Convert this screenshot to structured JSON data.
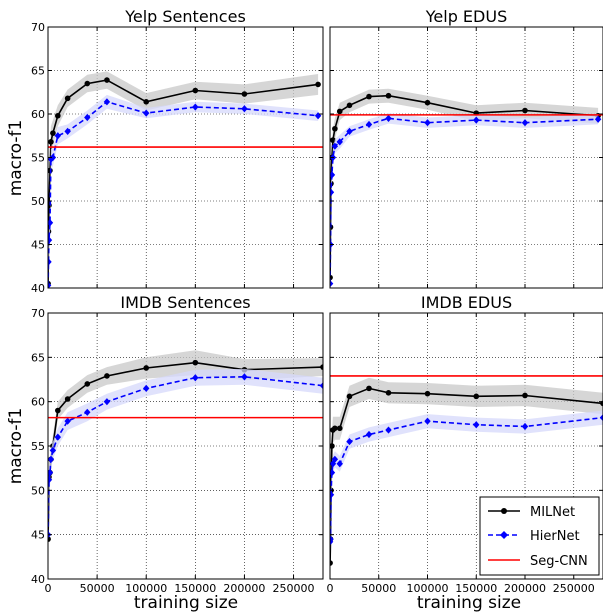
{
  "colors": {
    "milnet": "#000000",
    "hiernet": "#0000ff",
    "segcnn": "#ff0000",
    "milnet_band": "#c8c8c8",
    "hiernet_band": "#d6d8fb"
  },
  "legend": {
    "placement": "bottom-right of lower-right panel",
    "entries": [
      "MILNet",
      "HierNet",
      "Seg-CNN"
    ]
  },
  "axes": {
    "ylabel": "macro-f1",
    "xlabel": "training size"
  },
  "chart_data": [
    {
      "type": "line",
      "title": "Yelp Sentences",
      "xlim": [
        0,
        280000
      ],
      "ylim": [
        40,
        70
      ],
      "xticks": [
        "0",
        "50000",
        "100000",
        "150000",
        "200000",
        "250000"
      ],
      "yticks": [
        "40",
        "45",
        "50",
        "55",
        "60",
        "65",
        "70"
      ],
      "grid": true,
      "series": [
        {
          "name": "MILNet",
          "style": "solid-circle",
          "x": [
            100,
            500,
            1000,
            2000,
            3000,
            5000,
            10000,
            20000,
            40000,
            60000,
            100000,
            150000,
            200000,
            275000
          ],
          "y": [
            40.5,
            46.5,
            49.5,
            53.5,
            56.8,
            57.8,
            59.8,
            61.8,
            63.5,
            63.9,
            61.4,
            62.7,
            62.3,
            63.4
          ],
          "band": [
            2.0,
            2.0,
            2.0,
            2.0,
            1.8,
            1.5,
            1.2,
            1.0,
            1.0,
            1.0,
            1.0,
            1.0,
            1.1,
            1.2
          ]
        },
        {
          "name": "HierNet",
          "style": "dashed-diamond",
          "x": [
            100,
            500,
            1000,
            2000,
            3000,
            5000,
            10000,
            20000,
            40000,
            60000,
            100000,
            150000,
            200000,
            275000
          ],
          "y": [
            40.3,
            43.0,
            45.5,
            47.5,
            54.8,
            55.0,
            57.5,
            58.0,
            59.6,
            61.4,
            60.1,
            60.8,
            60.6,
            59.8
          ],
          "band": [
            1.5,
            1.5,
            1.5,
            1.5,
            1.2,
            1.0,
            1.0,
            0.8,
            0.8,
            0.8,
            0.6,
            0.6,
            0.6,
            0.6
          ]
        },
        {
          "name": "Seg-CNN",
          "style": "flat",
          "y": 56.2
        }
      ]
    },
    {
      "type": "line",
      "title": "Yelp EDUS",
      "xlim": [
        0,
        280000
      ],
      "ylim": [
        40,
        70
      ],
      "xticks": [
        "0",
        "50000",
        "100000",
        "150000",
        "200000",
        "250000"
      ],
      "yticks": [
        "40",
        "45",
        "50",
        "55",
        "60",
        "65",
        "70"
      ],
      "grid": true,
      "series": [
        {
          "name": "MILNet",
          "style": "solid-circle",
          "x": [
            100,
            500,
            1000,
            2000,
            3000,
            5000,
            10000,
            20000,
            40000,
            60000,
            100000,
            150000,
            200000,
            275000
          ],
          "y": [
            41.2,
            47.0,
            52.0,
            55.0,
            57.0,
            58.3,
            60.3,
            61.0,
            62.0,
            62.1,
            61.3,
            60.1,
            60.4,
            59.8
          ],
          "band": [
            2.0,
            2.0,
            1.8,
            1.5,
            1.3,
            1.2,
            1.0,
            0.8,
            0.8,
            0.8,
            0.8,
            0.9,
            0.9,
            0.9
          ]
        },
        {
          "name": "HierNet",
          "style": "dashed-diamond",
          "x": [
            100,
            500,
            1000,
            2000,
            3000,
            5000,
            10000,
            20000,
            40000,
            60000,
            100000,
            150000,
            200000,
            275000
          ],
          "y": [
            40.5,
            45.0,
            51.0,
            53.0,
            55.0,
            56.3,
            56.8,
            58.0,
            58.8,
            59.5,
            59.0,
            59.3,
            59.0,
            59.4
          ],
          "band": [
            1.5,
            1.5,
            1.2,
            1.0,
            1.0,
            0.8,
            0.8,
            0.6,
            0.6,
            0.6,
            0.6,
            0.6,
            0.6,
            0.6
          ]
        },
        {
          "name": "Seg-CNN",
          "style": "flat",
          "y": 59.9
        }
      ]
    },
    {
      "type": "line",
      "title": "IMDB Sentences",
      "xlim": [
        0,
        280000
      ],
      "ylim": [
        40,
        70
      ],
      "xticks": [
        "0",
        "50000",
        "100000",
        "150000",
        "200000",
        "250000"
      ],
      "yticks": [
        "40",
        "45",
        "50",
        "55",
        "60",
        "65",
        "70"
      ],
      "grid": true,
      "series": [
        {
          "name": "MILNet",
          "style": "solid-circle",
          "x": [
            100,
            1000,
            2000,
            3000,
            5000,
            10000,
            20000,
            40000,
            60000,
            100000,
            150000,
            200000,
            280000
          ],
          "y": [
            44.5,
            51.5,
            52.0,
            53.5,
            55.0,
            59.0,
            60.3,
            62.0,
            62.9,
            63.8,
            64.4,
            63.6,
            63.9
          ],
          "band": [
            1.5,
            1.5,
            1.5,
            1.2,
            1.2,
            1.0,
            1.0,
            1.0,
            1.0,
            1.2,
            1.4,
            1.2,
            1.0
          ]
        },
        {
          "name": "HierNet",
          "style": "dashed-diamond",
          "x": [
            100,
            1000,
            2000,
            3000,
            5000,
            10000,
            20000,
            40000,
            60000,
            100000,
            150000,
            200000,
            280000
          ],
          "y": [
            45.0,
            51.2,
            52.0,
            53.5,
            54.5,
            56.0,
            57.8,
            58.8,
            60.0,
            61.5,
            62.7,
            62.8,
            61.8
          ],
          "band": [
            1.5,
            1.5,
            1.2,
            1.2,
            1.0,
            1.0,
            1.0,
            1.0,
            0.9,
            0.9,
            0.9,
            0.9,
            0.9
          ]
        },
        {
          "name": "Seg-CNN",
          "style": "flat",
          "y": 58.2
        }
      ]
    },
    {
      "type": "line",
      "title": "IMDB EDUS",
      "xlim": [
        0,
        280000
      ],
      "ylim": [
        40,
        70
      ],
      "xticks": [
        "0",
        "50000",
        "100000",
        "150000",
        "200000",
        "250000"
      ],
      "yticks": [
        "40",
        "45",
        "50",
        "55",
        "60",
        "65",
        "70"
      ],
      "grid": true,
      "series": [
        {
          "name": "MILNet",
          "style": "solid-circle",
          "x": [
            100,
            500,
            1000,
            2000,
            3000,
            5000,
            10000,
            20000,
            40000,
            60000,
            100000,
            150000,
            200000,
            280000
          ],
          "y": [
            41.8,
            44.5,
            50.0,
            55.0,
            56.8,
            57.0,
            57.0,
            60.6,
            61.5,
            61.0,
            60.9,
            60.6,
            60.7,
            59.8
          ],
          "band": [
            2.0,
            2.0,
            1.8,
            1.5,
            1.5,
            1.3,
            1.3,
            1.2,
            1.2,
            1.2,
            1.2,
            1.2,
            1.2,
            1.2
          ]
        },
        {
          "name": "HierNet",
          "style": "dashed-diamond",
          "x": [
            100,
            500,
            1000,
            2000,
            3000,
            5000,
            10000,
            20000,
            40000,
            60000,
            100000,
            150000,
            200000,
            280000
          ],
          "y": [
            44.2,
            44.5,
            49.5,
            52.0,
            53.0,
            53.5,
            53.0,
            55.5,
            56.3,
            56.8,
            57.8,
            57.4,
            57.2,
            58.2
          ],
          "band": [
            1.5,
            1.5,
            1.2,
            1.0,
            1.0,
            0.9,
            0.9,
            0.8,
            0.8,
            0.8,
            0.8,
            0.8,
            0.8,
            0.8
          ]
        },
        {
          "name": "Seg-CNN",
          "style": "flat",
          "y": 62.9
        }
      ]
    }
  ]
}
